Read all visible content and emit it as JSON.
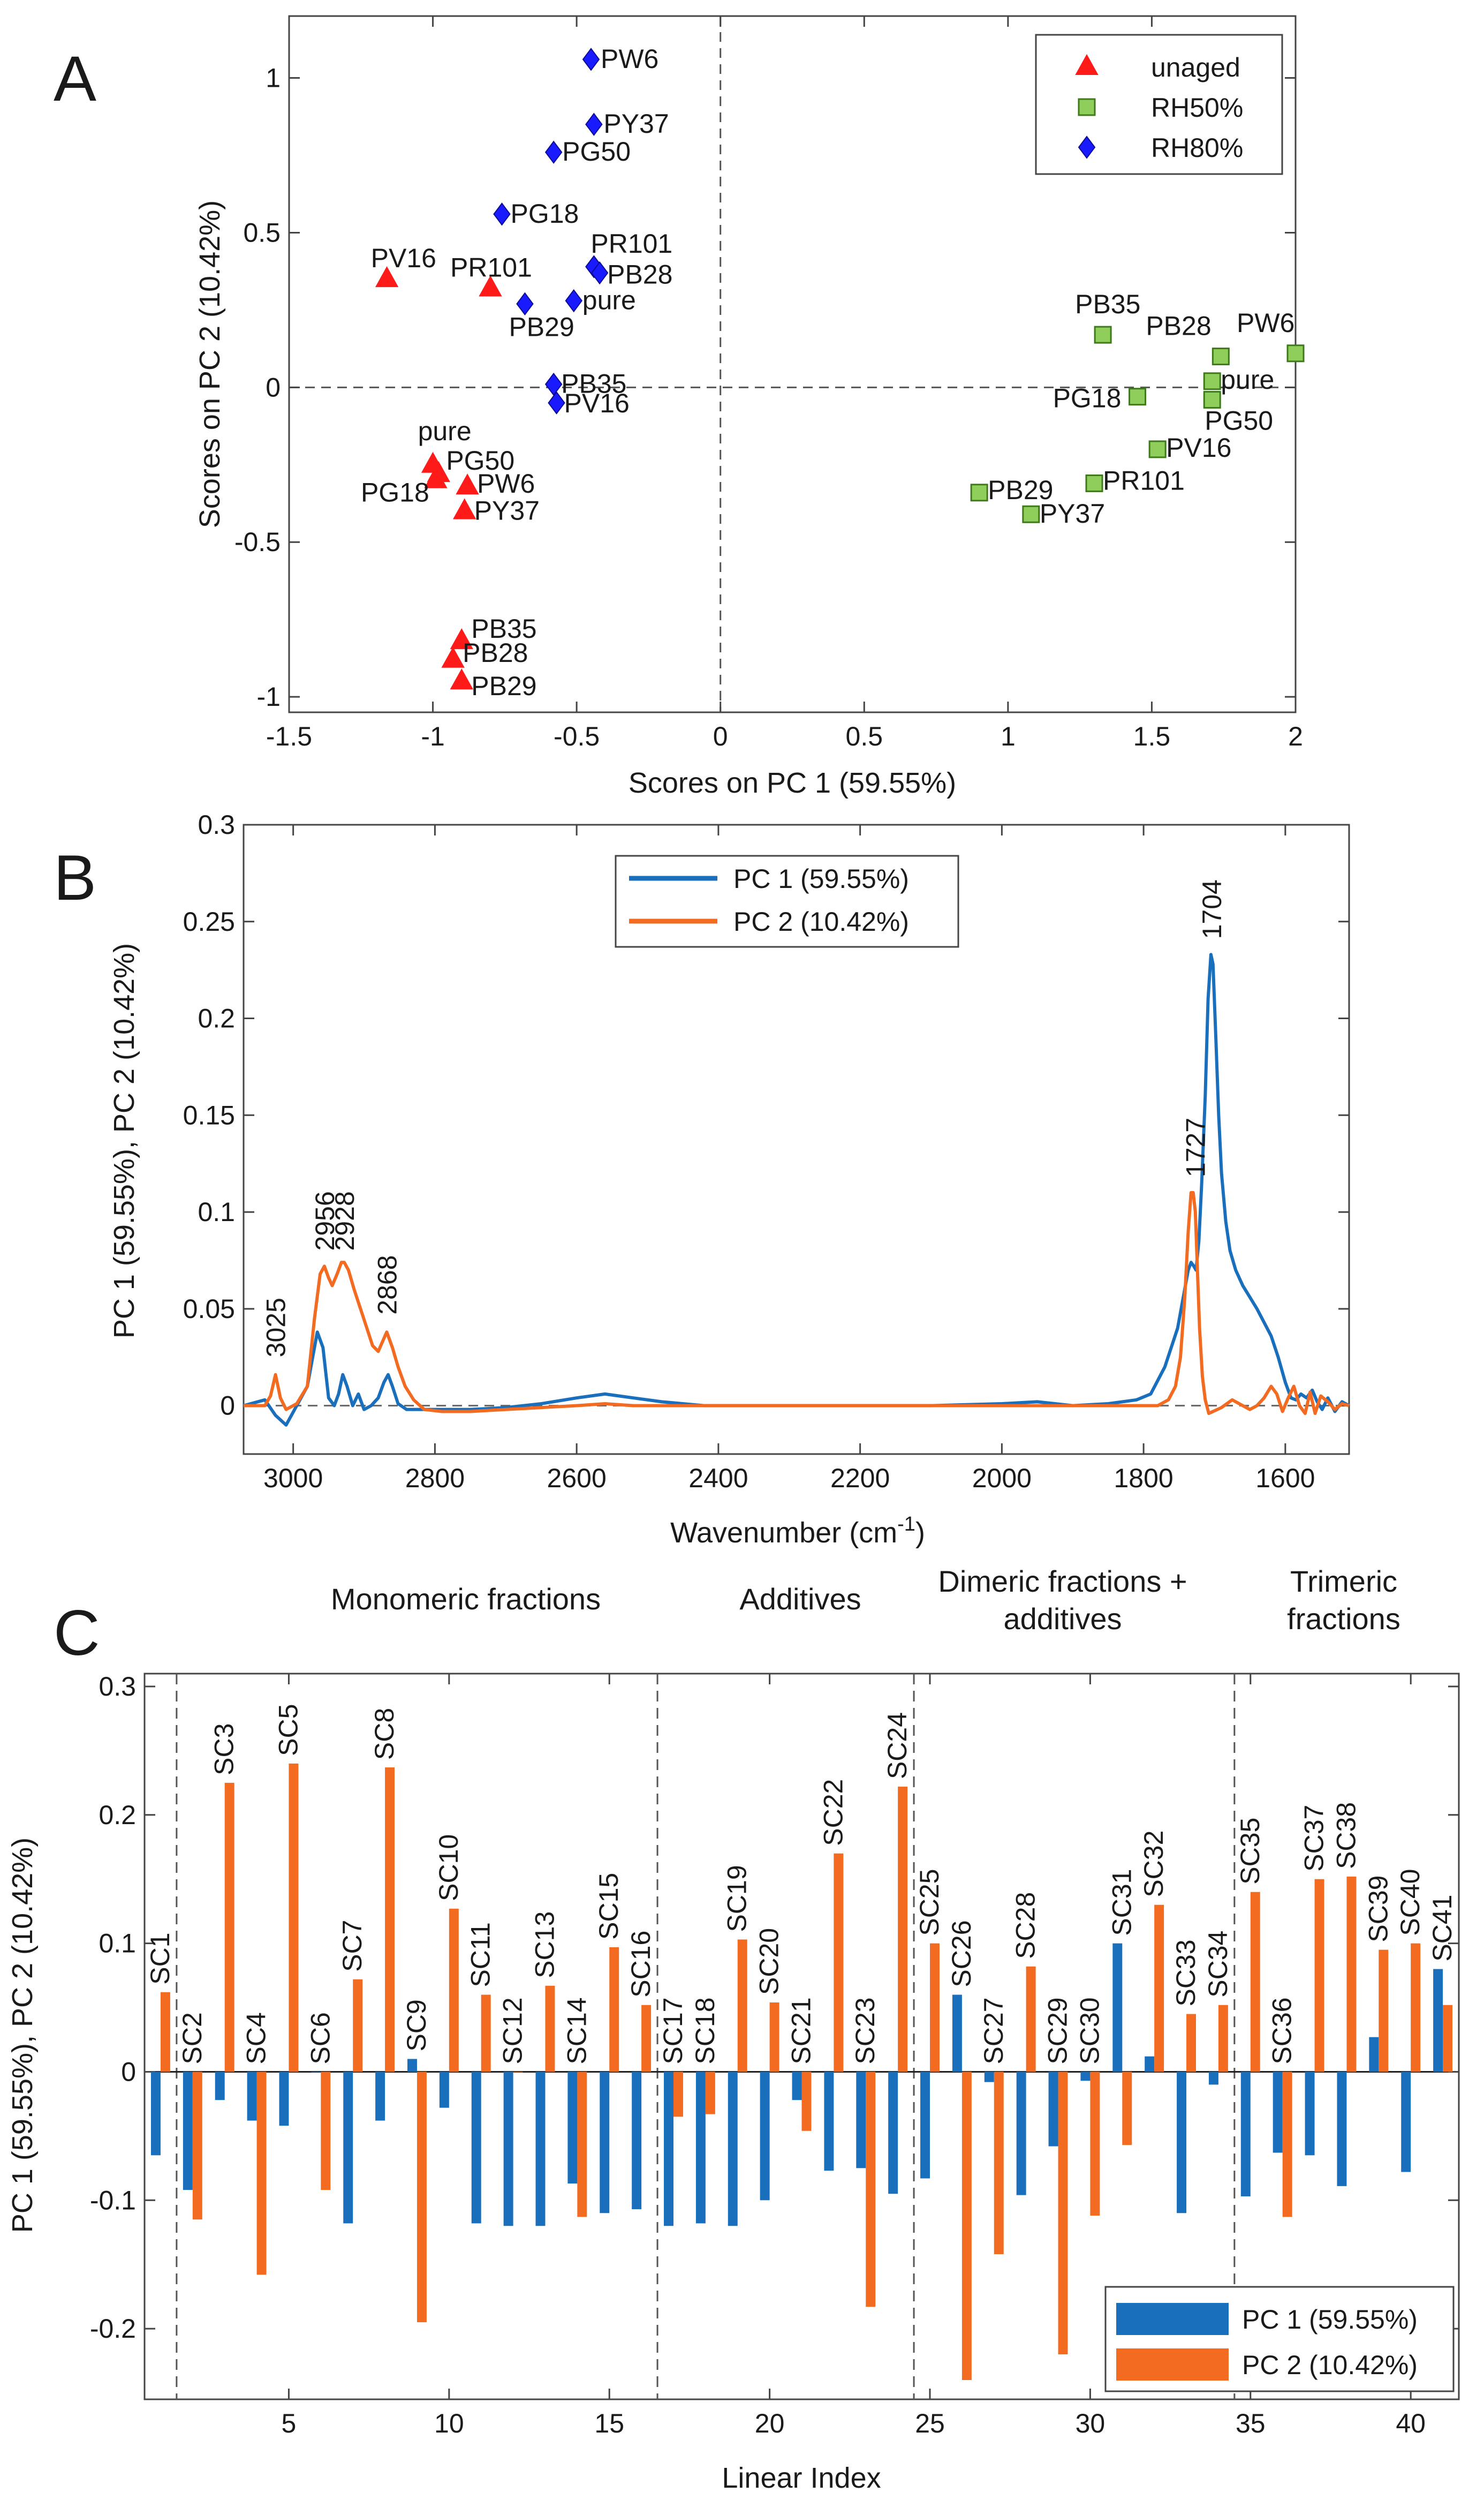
{
  "figure": {
    "panel_letters": [
      "A",
      "B",
      "C"
    ]
  },
  "chart_data": [
    {
      "panel": "A",
      "type": "scatter",
      "title": "",
      "xlabel": "Scores on PC 1 (59.55%)",
      "ylabel": "Scores on PC 2 (10.42%)",
      "xlim": [
        -1.5,
        2
      ],
      "ylim": [
        -1.05,
        1.2
      ],
      "xticks": [
        "-1.5",
        "-1",
        "-0.5",
        "0",
        "0.5",
        "1",
        "1.5",
        "2"
      ],
      "yticks": [
        "1",
        "0.5",
        "0",
        "-0.5",
        "-1"
      ],
      "zero_lines": "dashed at x=0 and y=0",
      "legend": {
        "position": "top-right",
        "entries": [
          "unaged",
          "RH50%",
          "RH80%"
        ]
      },
      "colors": {
        "unaged": "#ff1a1a",
        "RH50%": "#8fce5a",
        "RH80%": "#1a1aff"
      },
      "series": [
        {
          "name": "unaged",
          "marker": "triangle",
          "points": [
            {
              "label": "PV16",
              "x": -1.16,
              "y": 0.35
            },
            {
              "label": "PR101",
              "x": -0.8,
              "y": 0.32
            },
            {
              "label": "pure",
              "x": -1.0,
              "y": -0.25
            },
            {
              "label": "PG50",
              "x": -0.98,
              "y": -0.28
            },
            {
              "label": "PG18",
              "x": -0.99,
              "y": -0.3
            },
            {
              "label": "PW6",
              "x": -0.88,
              "y": -0.32
            },
            {
              "label": "PY37",
              "x": -0.89,
              "y": -0.4
            },
            {
              "label": "PB35",
              "x": -0.9,
              "y": -0.82
            },
            {
              "label": "PB28",
              "x": -0.93,
              "y": -0.88
            },
            {
              "label": "PB29",
              "x": -0.9,
              "y": -0.95
            }
          ]
        },
        {
          "name": "RH50%",
          "marker": "square",
          "points": [
            {
              "label": "PB35",
              "x": 1.33,
              "y": 0.17
            },
            {
              "label": "PB28",
              "x": 1.74,
              "y": 0.1
            },
            {
              "label": "PW6",
              "x": 2.0,
              "y": 0.11
            },
            {
              "label": "PG18",
              "x": 1.45,
              "y": -0.03
            },
            {
              "label": "pure",
              "x": 1.71,
              "y": 0.02
            },
            {
              "label": "PG50",
              "x": 1.71,
              "y": -0.04
            },
            {
              "label": "PV16",
              "x": 1.52,
              "y": -0.2
            },
            {
              "label": "PB29",
              "x": 0.9,
              "y": -0.34
            },
            {
              "label": "PR101",
              "x": 1.3,
              "y": -0.31
            },
            {
              "label": "PY37",
              "x": 1.08,
              "y": -0.41
            }
          ]
        },
        {
          "name": "RH80%",
          "marker": "diamond",
          "points": [
            {
              "label": "PW6",
              "x": -0.45,
              "y": 1.06
            },
            {
              "label": "PY37",
              "x": -0.44,
              "y": 0.85
            },
            {
              "label": "PG50",
              "x": -0.58,
              "y": 0.76
            },
            {
              "label": "PG18",
              "x": -0.76,
              "y": 0.56
            },
            {
              "label": "PR101",
              "x": -0.44,
              "y": 0.39
            },
            {
              "label": "PB28",
              "x": -0.42,
              "y": 0.37
            },
            {
              "label": "pure",
              "x": -0.51,
              "y": 0.28
            },
            {
              "label": "PB29",
              "x": -0.68,
              "y": 0.27
            },
            {
              "label": "PB35",
              "x": -0.58,
              "y": 0.01
            },
            {
              "label": "PV16",
              "x": -0.57,
              "y": -0.05
            }
          ]
        }
      ]
    },
    {
      "panel": "B",
      "type": "line",
      "title": "",
      "xlabel": "Wavenumber (cm",
      "xlabel_superscript": "-1",
      "xlabel_tail": ")",
      "ylabel": "PC 1 (59.55%), PC 2 (10.42%)",
      "xlim": [
        3070,
        1510
      ],
      "ylim": [
        -0.025,
        0.3
      ],
      "xticks": [
        "3000",
        "2800",
        "2600",
        "2400",
        "2200",
        "2000",
        "1800",
        "1600"
      ],
      "yticks": [
        "0.3",
        "0.25",
        "0.2",
        "0.15",
        "0.1",
        "0.05",
        "0"
      ],
      "legend": {
        "position": "top-center",
        "entries": [
          "PC 1 (59.55%)",
          "PC 2 (10.42%)"
        ]
      },
      "colors": {
        "PC 1 (59.55%)": "#1a6fbd",
        "PC 2 (10.42%)": "#f26b21"
      },
      "peak_labels": [
        {
          "text": "3025",
          "x": 3025,
          "y": 0.02
        },
        {
          "text": "2956",
          "x": 2956,
          "y": 0.075
        },
        {
          "text": "2928",
          "x": 2928,
          "y": 0.075
        },
        {
          "text": "2868",
          "x": 2868,
          "y": 0.042
        },
        {
          "text": "1727",
          "x": 1727,
          "y": 0.113
        },
        {
          "text": "1704",
          "x": 1704,
          "y": 0.236
        }
      ],
      "series": [
        {
          "name": "PC 1 (59.55%)",
          "x": [
            3070,
            3040,
            3025,
            3010,
            2995,
            2980,
            2966,
            2958,
            2950,
            2942,
            2936,
            2930,
            2924,
            2916,
            2908,
            2900,
            2890,
            2880,
            2872,
            2866,
            2860,
            2852,
            2840,
            2800,
            2750,
            2700,
            2650,
            2600,
            2560,
            2520,
            2480,
            2420,
            2400,
            2300,
            2200,
            2100,
            2000,
            1950,
            1900,
            1850,
            1810,
            1790,
            1770,
            1752,
            1742,
            1737,
            1733,
            1729,
            1726,
            1722,
            1718,
            1713,
            1709,
            1705,
            1702,
            1698,
            1694,
            1690,
            1684,
            1678,
            1670,
            1660,
            1650,
            1640,
            1630,
            1620,
            1610,
            1600,
            1592,
            1585,
            1578,
            1570,
            1562,
            1555,
            1548,
            1540,
            1530,
            1520,
            1510
          ],
          "y": [
            0.0,
            0.003,
            -0.005,
            -0.01,
            0.0,
            0.01,
            0.038,
            0.03,
            0.004,
            0.0,
            0.006,
            0.016,
            0.01,
            0.0,
            0.006,
            -0.002,
            0.0,
            0.004,
            0.012,
            0.016,
            0.01,
            0.001,
            -0.002,
            -0.002,
            -0.002,
            -0.001,
            0.001,
            0.004,
            0.006,
            0.004,
            0.002,
            0.0,
            0.0,
            0.0,
            0.0,
            0.0,
            0.001,
            0.002,
            0.0,
            0.001,
            0.003,
            0.006,
            0.02,
            0.04,
            0.06,
            0.07,
            0.074,
            0.072,
            0.07,
            0.085,
            0.115,
            0.16,
            0.21,
            0.233,
            0.228,
            0.19,
            0.15,
            0.12,
            0.095,
            0.08,
            0.07,
            0.062,
            0.056,
            0.05,
            0.043,
            0.036,
            0.025,
            0.012,
            0.004,
            0.003,
            0.006,
            0.004,
            0.008,
            0.002,
            -0.002,
            0.004,
            -0.003,
            0.002,
            0.0
          ]
        },
        {
          "name": "PC 2 (10.42%)",
          "x": [
            3070,
            3040,
            3032,
            3025,
            3018,
            3010,
            2995,
            2980,
            2970,
            2962,
            2956,
            2950,
            2945,
            2938,
            2932,
            2928,
            2922,
            2914,
            2905,
            2896,
            2888,
            2880,
            2874,
            2868,
            2860,
            2852,
            2842,
            2830,
            2815,
            2790,
            2750,
            2700,
            2650,
            2600,
            2560,
            2520,
            2480,
            2420,
            2400,
            2300,
            2200,
            2100,
            2000,
            1900,
            1850,
            1800,
            1780,
            1765,
            1755,
            1748,
            1742,
            1737,
            1733,
            1730,
            1727,
            1724,
            1721,
            1717,
            1713,
            1708,
            1702,
            1690,
            1675,
            1660,
            1650,
            1640,
            1630,
            1620,
            1612,
            1604,
            1596,
            1588,
            1580,
            1572,
            1565,
            1558,
            1550,
            1540,
            1530,
            1520,
            1510
          ],
          "y": [
            0.0,
            0.0,
            0.005,
            0.016,
            0.004,
            -0.002,
            0.001,
            0.01,
            0.045,
            0.068,
            0.072,
            0.066,
            0.062,
            0.068,
            0.074,
            0.074,
            0.07,
            0.06,
            0.05,
            0.04,
            0.031,
            0.028,
            0.033,
            0.038,
            0.03,
            0.02,
            0.01,
            0.003,
            -0.002,
            -0.003,
            -0.003,
            -0.002,
            -0.001,
            0.0,
            0.001,
            0.0,
            0.0,
            0.0,
            0.0,
            0.0,
            0.0,
            0.0,
            0.0,
            0.0,
            0.0,
            0.0,
            0.0,
            0.003,
            0.01,
            0.025,
            0.055,
            0.09,
            0.11,
            0.11,
            0.1,
            0.07,
            0.04,
            0.015,
            0.003,
            -0.004,
            -0.003,
            -0.001,
            0.003,
            0.0,
            -0.002,
            0.0,
            0.004,
            0.01,
            0.006,
            -0.003,
            0.004,
            0.01,
            0.0,
            -0.004,
            0.007,
            -0.004,
            0.005,
            0.002,
            -0.002,
            0.001,
            0.0
          ]
        }
      ]
    },
    {
      "panel": "C",
      "type": "bar",
      "title": "",
      "xlabel": "Linear Index",
      "ylabel": "PC 1 (59.55%), PC 2 (10.42%)",
      "xlim": [
        0.5,
        41.5
      ],
      "ylim": [
        -0.255,
        0.31
      ],
      "xticks": [
        "5",
        "10",
        "15",
        "20",
        "25",
        "30",
        "35",
        "40"
      ],
      "yticks": [
        "0.3",
        "0.2",
        "0.1",
        "0",
        "-0.1",
        "-0.2"
      ],
      "legend": {
        "position": "bottom-right",
        "entries": [
          "PC 1 (59.55%)",
          "PC 2 (10.42%)"
        ]
      },
      "colors": {
        "PC 1 (59.55%)": "#1a6fbd",
        "PC 2 (10.42%)": "#f26b21"
      },
      "section_dividers": [
        1.5,
        16.5,
        24.5,
        34.5
      ],
      "group_labels": [
        {
          "lines": [
            "Monomeric fractions"
          ]
        },
        {
          "lines": [
            "Additives"
          ]
        },
        {
          "lines": [
            "Dimeric fractions +",
            "additives"
          ]
        },
        {
          "lines": [
            "Trimeric",
            "fractions"
          ]
        }
      ],
      "categories": [
        "SC1",
        "SC2",
        "SC3",
        "SC4",
        "SC5",
        "SC6",
        "SC7",
        "SC8",
        "SC9",
        "SC10",
        "SC11",
        "SC12",
        "SC13",
        "SC14",
        "SC15",
        "SC16",
        "SC17",
        "SC18",
        "SC19",
        "SC20",
        "SC21",
        "SC22",
        "SC23",
        "SC24",
        "SC25",
        "SC26",
        "SC27",
        "SC28",
        "SC29",
        "SC30",
        "SC31",
        "SC32",
        "SC33",
        "SC34",
        "SC35",
        "SC36",
        "SC37",
        "SC38",
        "SC39",
        "SC40",
        "SC41"
      ],
      "series": [
        {
          "name": "PC 1 (59.55%)",
          "values": [
            -0.065,
            -0.092,
            -0.022,
            -0.038,
            -0.042,
            0.0,
            -0.118,
            -0.038,
            0.01,
            -0.028,
            -0.118,
            -0.12,
            -0.12,
            -0.087,
            -0.11,
            -0.107,
            -0.12,
            -0.118,
            -0.12,
            -0.1,
            -0.022,
            -0.077,
            -0.075,
            -0.095,
            -0.083,
            0.06,
            -0.008,
            -0.096,
            -0.058,
            -0.007,
            0.1,
            0.012,
            -0.11,
            -0.01,
            -0.097,
            -0.063,
            -0.065,
            -0.089,
            0.027,
            -0.078,
            0.08
          ]
        },
        {
          "name": "PC 2 (10.42%)",
          "values": [
            0.062,
            -0.115,
            0.225,
            -0.158,
            0.24,
            -0.092,
            0.072,
            0.237,
            -0.195,
            0.127,
            0.06,
            0.0,
            0.067,
            -0.113,
            0.097,
            0.052,
            -0.035,
            -0.033,
            0.103,
            0.054,
            -0.046,
            0.17,
            -0.183,
            0.222,
            0.1,
            -0.24,
            -0.142,
            0.082,
            -0.22,
            -0.112,
            -0.057,
            0.13,
            0.045,
            0.052,
            0.14,
            -0.113,
            0.15,
            0.152,
            0.095,
            0.1,
            0.052
          ]
        }
      ]
    }
  ]
}
